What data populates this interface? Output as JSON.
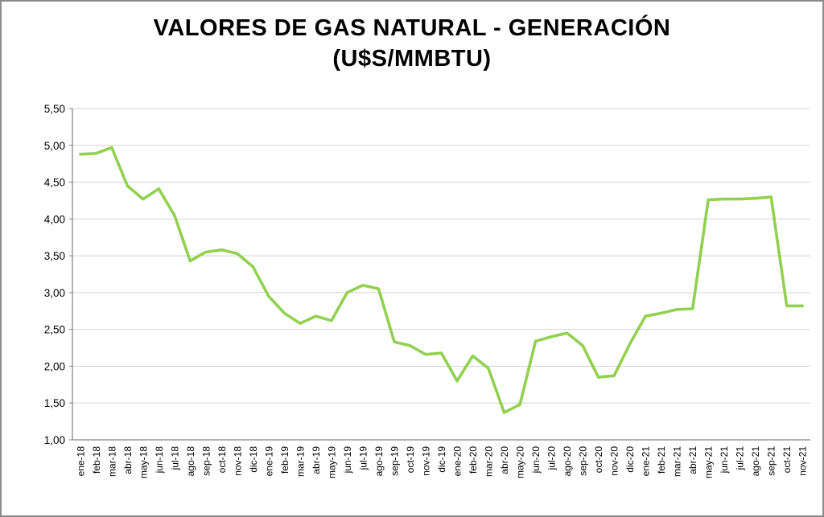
{
  "chart_data": {
    "type": "line",
    "title": "VALORES DE GAS NATURAL - GENERACIÓN (U$S/MMBTU)",
    "title_lines": [
      "VALORES DE GAS NATURAL - GENERACIÓN",
      "(U$S/MMBTU)"
    ],
    "xlabel": "",
    "ylabel": "",
    "ylim": [
      1.0,
      5.5
    ],
    "ytick_step": 0.5,
    "ytick_labels": [
      "1,00",
      "1,50",
      "2,00",
      "2,50",
      "3,00",
      "3,50",
      "4,00",
      "4,50",
      "5,00",
      "5,50"
    ],
    "grid": true,
    "legend_position": "none",
    "line_color": "#92d050",
    "gridline_color": "#d2d2d2",
    "axis_color": "#7f7f7f",
    "categories": [
      "ene-18",
      "feb-18",
      "mar-18",
      "abr-18",
      "may-18",
      "jun-18",
      "jul-18",
      "ago-18",
      "sep-18",
      "oct-18",
      "nov-18",
      "dic-18",
      "ene-19",
      "feb-19",
      "mar-19",
      "abr-19",
      "may-19",
      "jun-19",
      "jul-19",
      "ago-19",
      "sep-19",
      "oct-19",
      "nov-19",
      "dic-19",
      "ene-20",
      "feb-20",
      "mar-20",
      "abr-20",
      "may-20",
      "jun-20",
      "jul-20",
      "ago-20",
      "sep-20",
      "oct-20",
      "nov-20",
      "dic-20",
      "ene-21",
      "feb-21",
      "mar-21",
      "abr-21",
      "may-21",
      "jun-21",
      "jul-21",
      "ago-21",
      "sep-21",
      "oct-21",
      "nov-21"
    ],
    "values": [
      4.88,
      4.89,
      4.97,
      4.45,
      4.27,
      4.41,
      4.05,
      3.43,
      3.55,
      3.58,
      3.53,
      3.35,
      2.95,
      2.72,
      2.58,
      2.68,
      2.62,
      3.0,
      3.1,
      3.05,
      2.33,
      2.28,
      2.16,
      2.18,
      1.8,
      2.14,
      1.97,
      1.37,
      1.48,
      2.34,
      2.4,
      2.45,
      2.28,
      1.85,
      1.87,
      2.3,
      2.68,
      2.72,
      2.77,
      2.78,
      4.26,
      4.27,
      4.27,
      4.28,
      4.3,
      2.82,
      2.82
    ]
  }
}
